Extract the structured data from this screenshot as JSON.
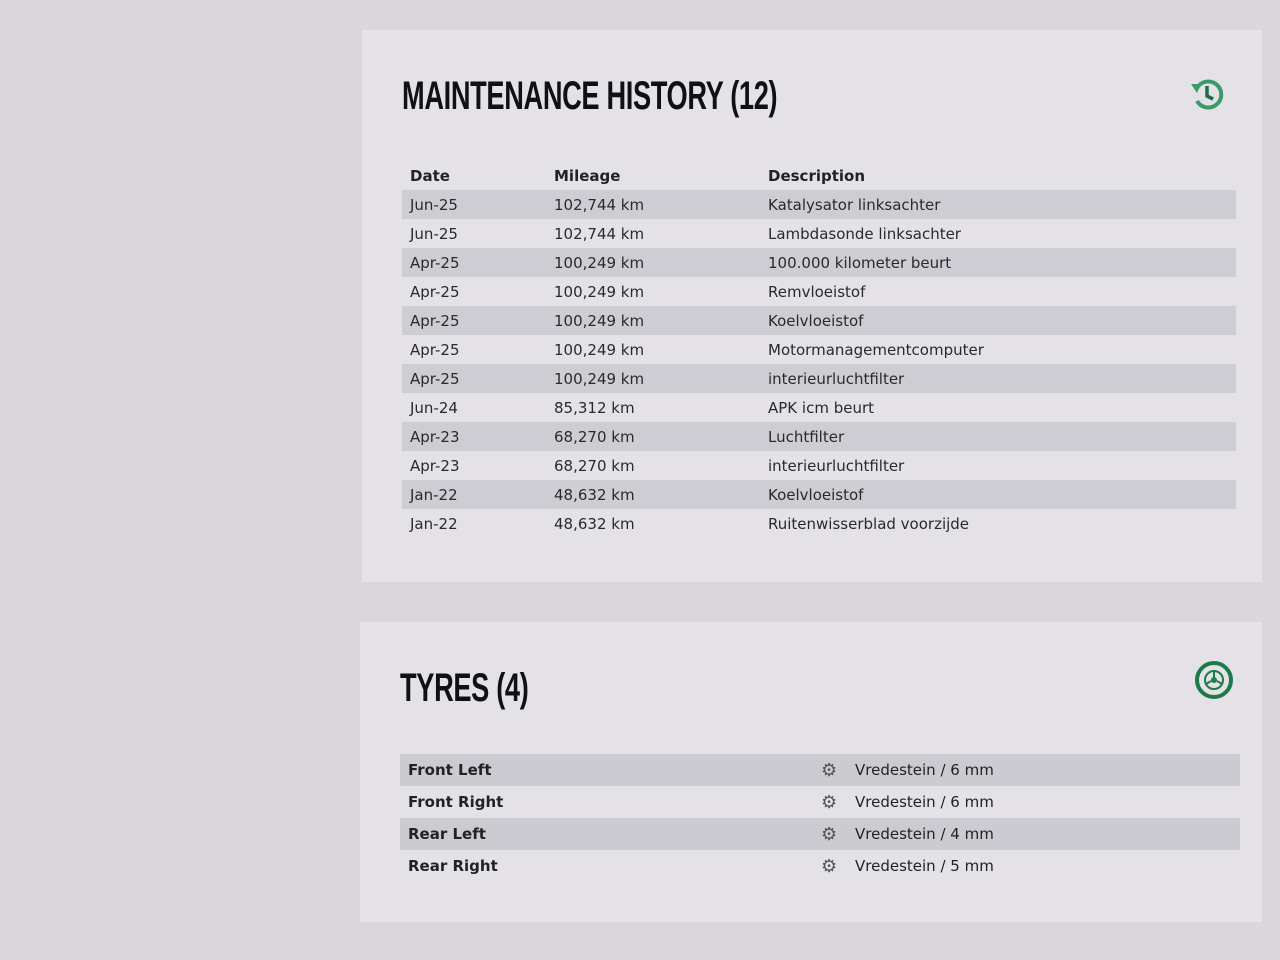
{
  "maintenance": {
    "title": "MAINTENANCE HISTORY (12)",
    "icon": "history-icon",
    "columns": [
      "Date",
      "Mileage",
      "Description"
    ],
    "rows": [
      [
        "Jun-25",
        "102,744 km",
        "Katalysator linksachter"
      ],
      [
        "Jun-25",
        "102,744 km",
        "Lambdasonde linksachter"
      ],
      [
        "Apr-25",
        "100,249 km",
        "100.000 kilometer beurt"
      ],
      [
        "Apr-25",
        "100,249 km",
        "Remvloeistof"
      ],
      [
        "Apr-25",
        "100,249 km",
        "Koelvloeistof"
      ],
      [
        "Apr-25",
        "100,249 km",
        "Motormanagementcomputer"
      ],
      [
        "Apr-25",
        "100,249 km",
        "interieurluchtfilter"
      ],
      [
        "Jun-24",
        "85,312 km",
        "APK icm beurt"
      ],
      [
        "Apr-23",
        "68,270 km",
        "Luchtfilter"
      ],
      [
        "Apr-23",
        "68,270 km",
        "interieurluchtfilter"
      ],
      [
        "Jan-22",
        "48,632 km",
        "Koelvloeistof"
      ],
      [
        "Jan-22",
        "48,632 km",
        "Ruitenwisserblad voorzijde"
      ]
    ]
  },
  "tyres": {
    "title": "TYRES (4)",
    "icon": "wheel-icon",
    "rows": [
      {
        "position": "Front Left",
        "spec": "Vredestein / 6 mm"
      },
      {
        "position": "Front Right",
        "spec": "Vredestein / 6 mm"
      },
      {
        "position": "Rear Left",
        "spec": "Vredestein / 4 mm"
      },
      {
        "position": "Rear Right",
        "spec": "Vredestein / 5 mm"
      }
    ]
  },
  "colors": {
    "accent": "#2e8b5a",
    "background": "#d9d7da",
    "card": "#e4e2e6",
    "stripe": "#cfcdd4"
  }
}
